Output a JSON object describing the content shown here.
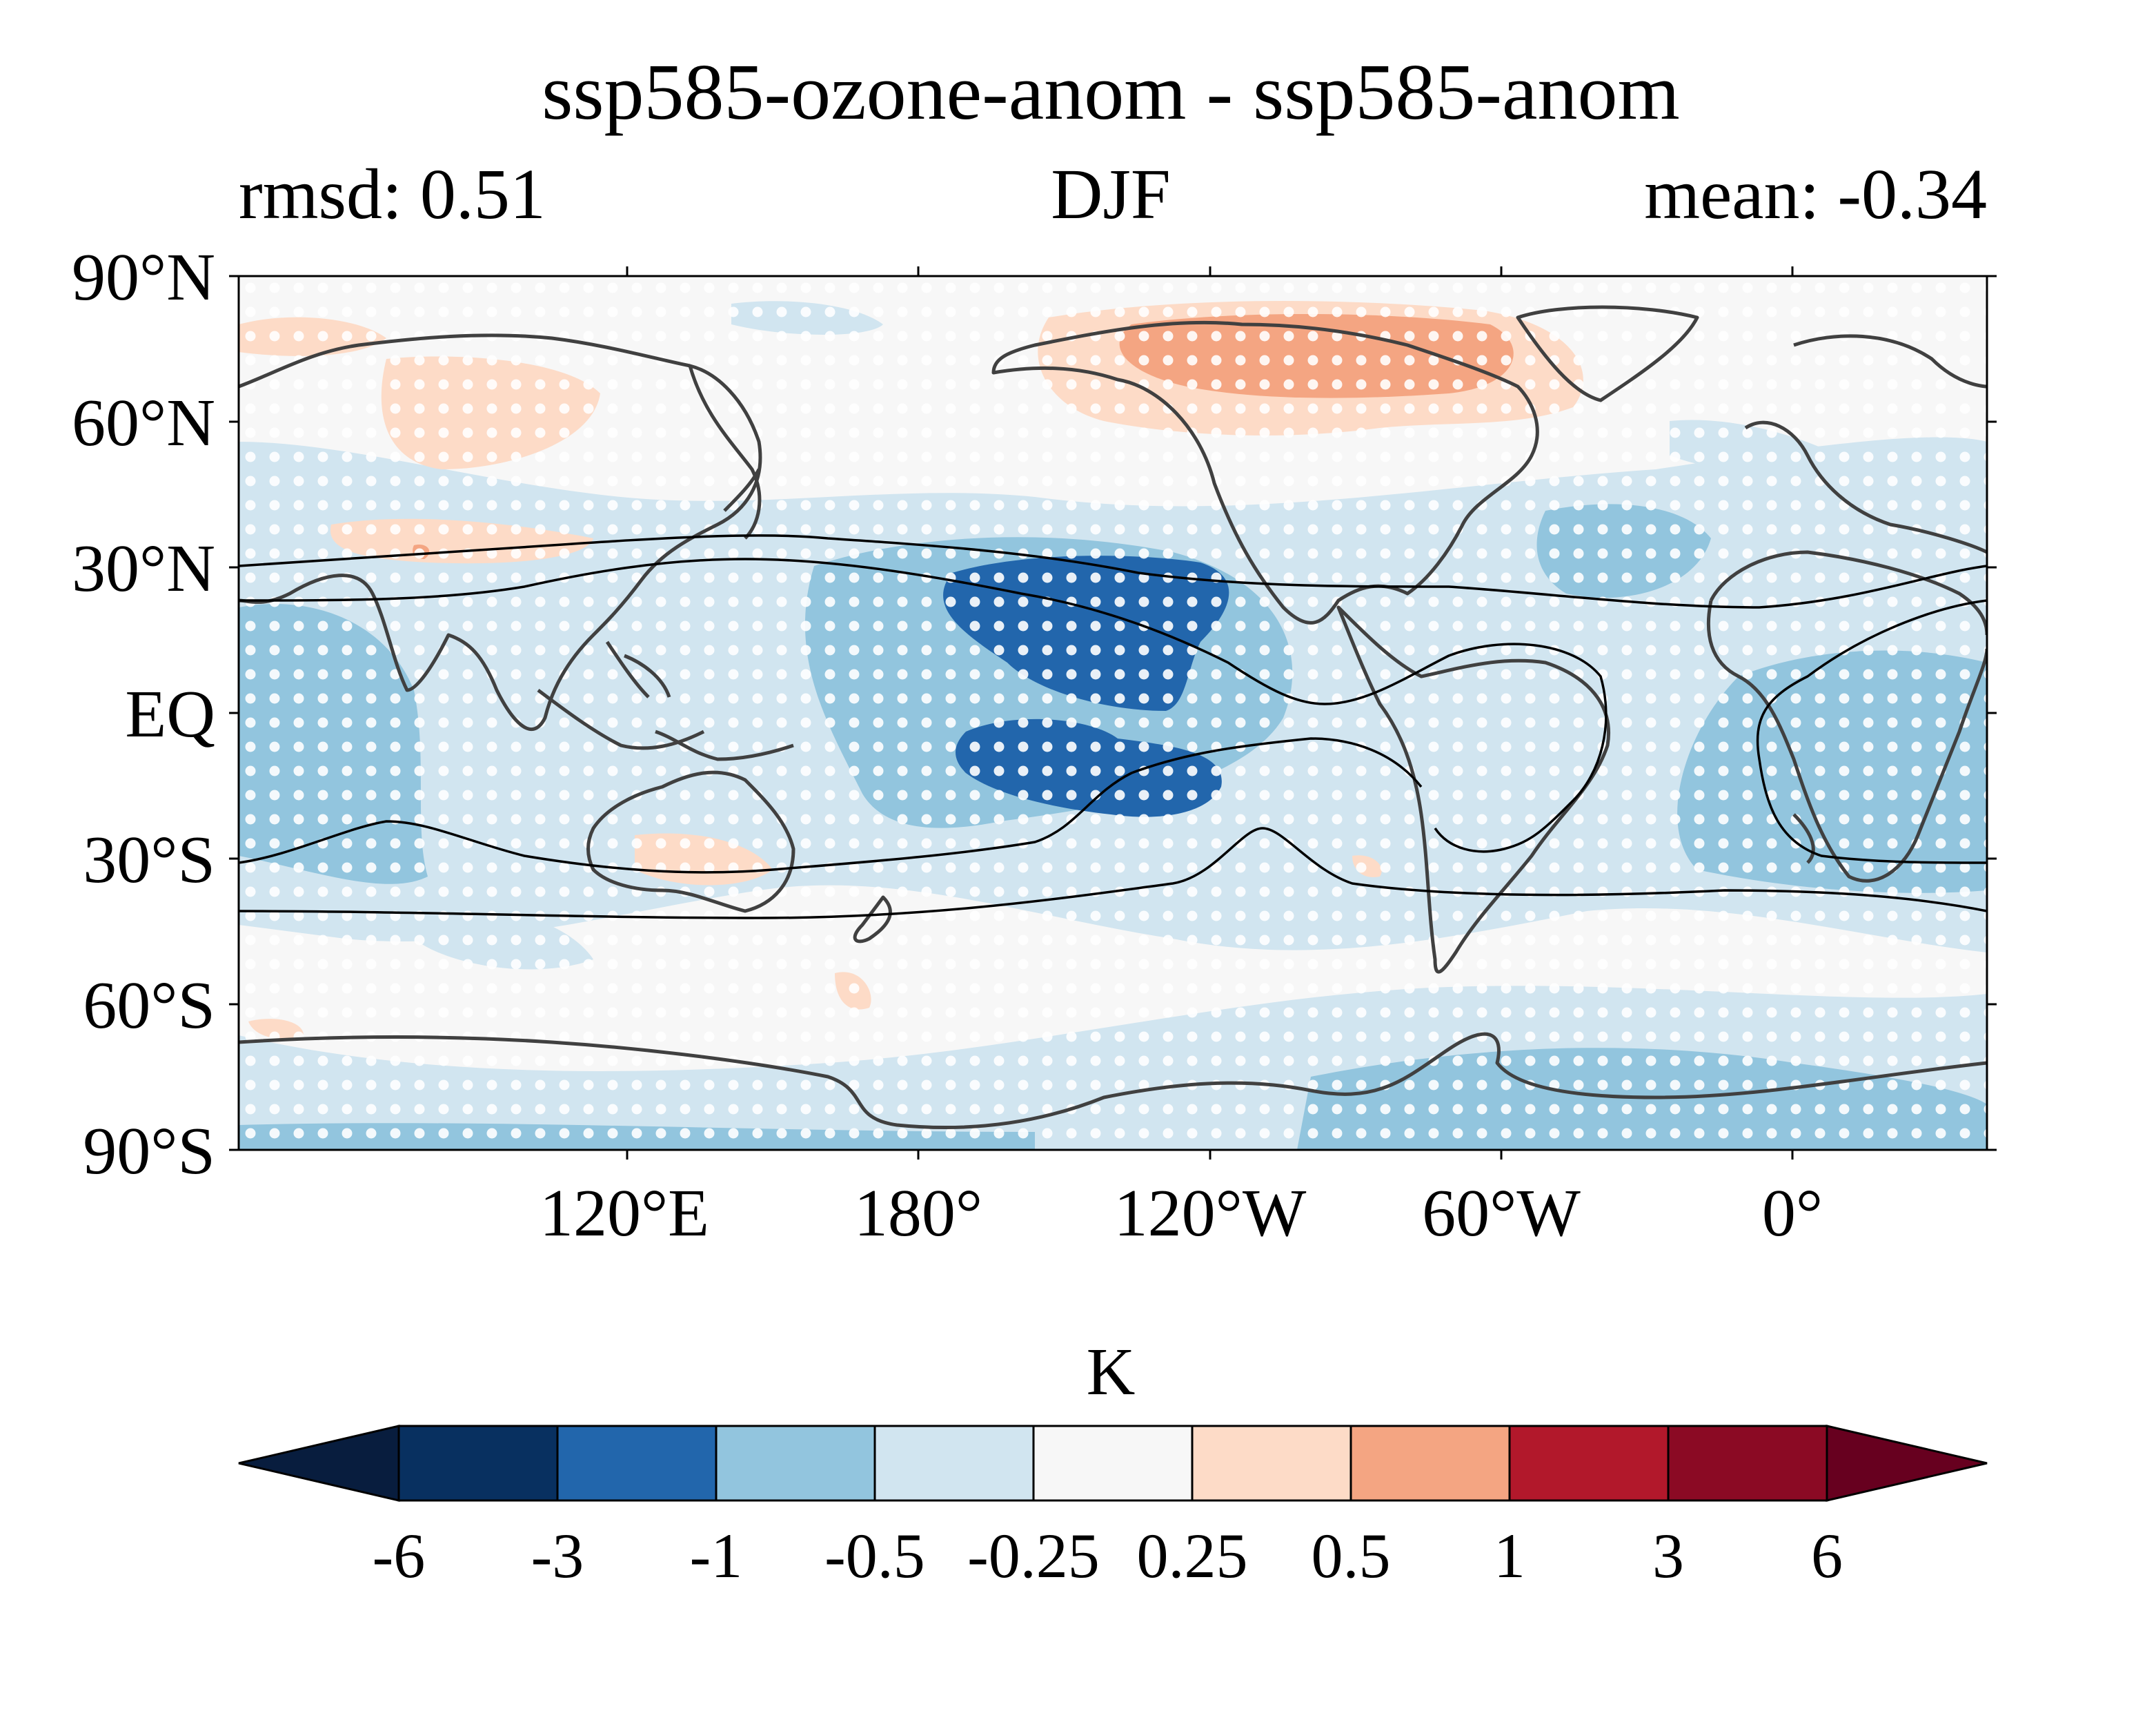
{
  "figure": {
    "title": "ssp585-ozone-anom - ssp585-anom",
    "subtitle_left": "rmsd: 0.51",
    "subtitle_center": "DJF",
    "subtitle_right": "mean: -0.34"
  },
  "map": {
    "projection": "PlateCarree",
    "lon_range_east_deg": [
      40,
      400
    ],
    "lat_range": [
      -90,
      90
    ],
    "x_tick_labels": [
      "120°E",
      "180°",
      "120°W",
      "60°W",
      "0°"
    ],
    "y_tick_labels": [
      "90°N",
      "60°N",
      "30°N",
      "EQ",
      "30°S",
      "60°S",
      "90°S"
    ],
    "coastline_color": "#404040",
    "stippling": "white dots mark significant regions",
    "colors": {
      "below_-6": "#081d3e",
      "-6_-3": "#083060",
      "-3_-1": "#2266ac",
      "-1_-0.5": "#92c5de",
      "-0.5_-0.25": "#d1e5f0",
      "-0.25_0.25": "#f7f7f7",
      "0.25_0.5": "#fddbc7",
      "0.5_1": "#f4a582",
      "1_3": "#b2182b",
      "3_6": "#8b0a24",
      "above_6": "#67001f"
    }
  },
  "colorbar": {
    "label": "K",
    "ticks": [
      "-6",
      "-3",
      "-1",
      "-0.5",
      "-0.25",
      "0.25",
      "0.5",
      "1",
      "3",
      "6"
    ],
    "extend": "both"
  }
}
